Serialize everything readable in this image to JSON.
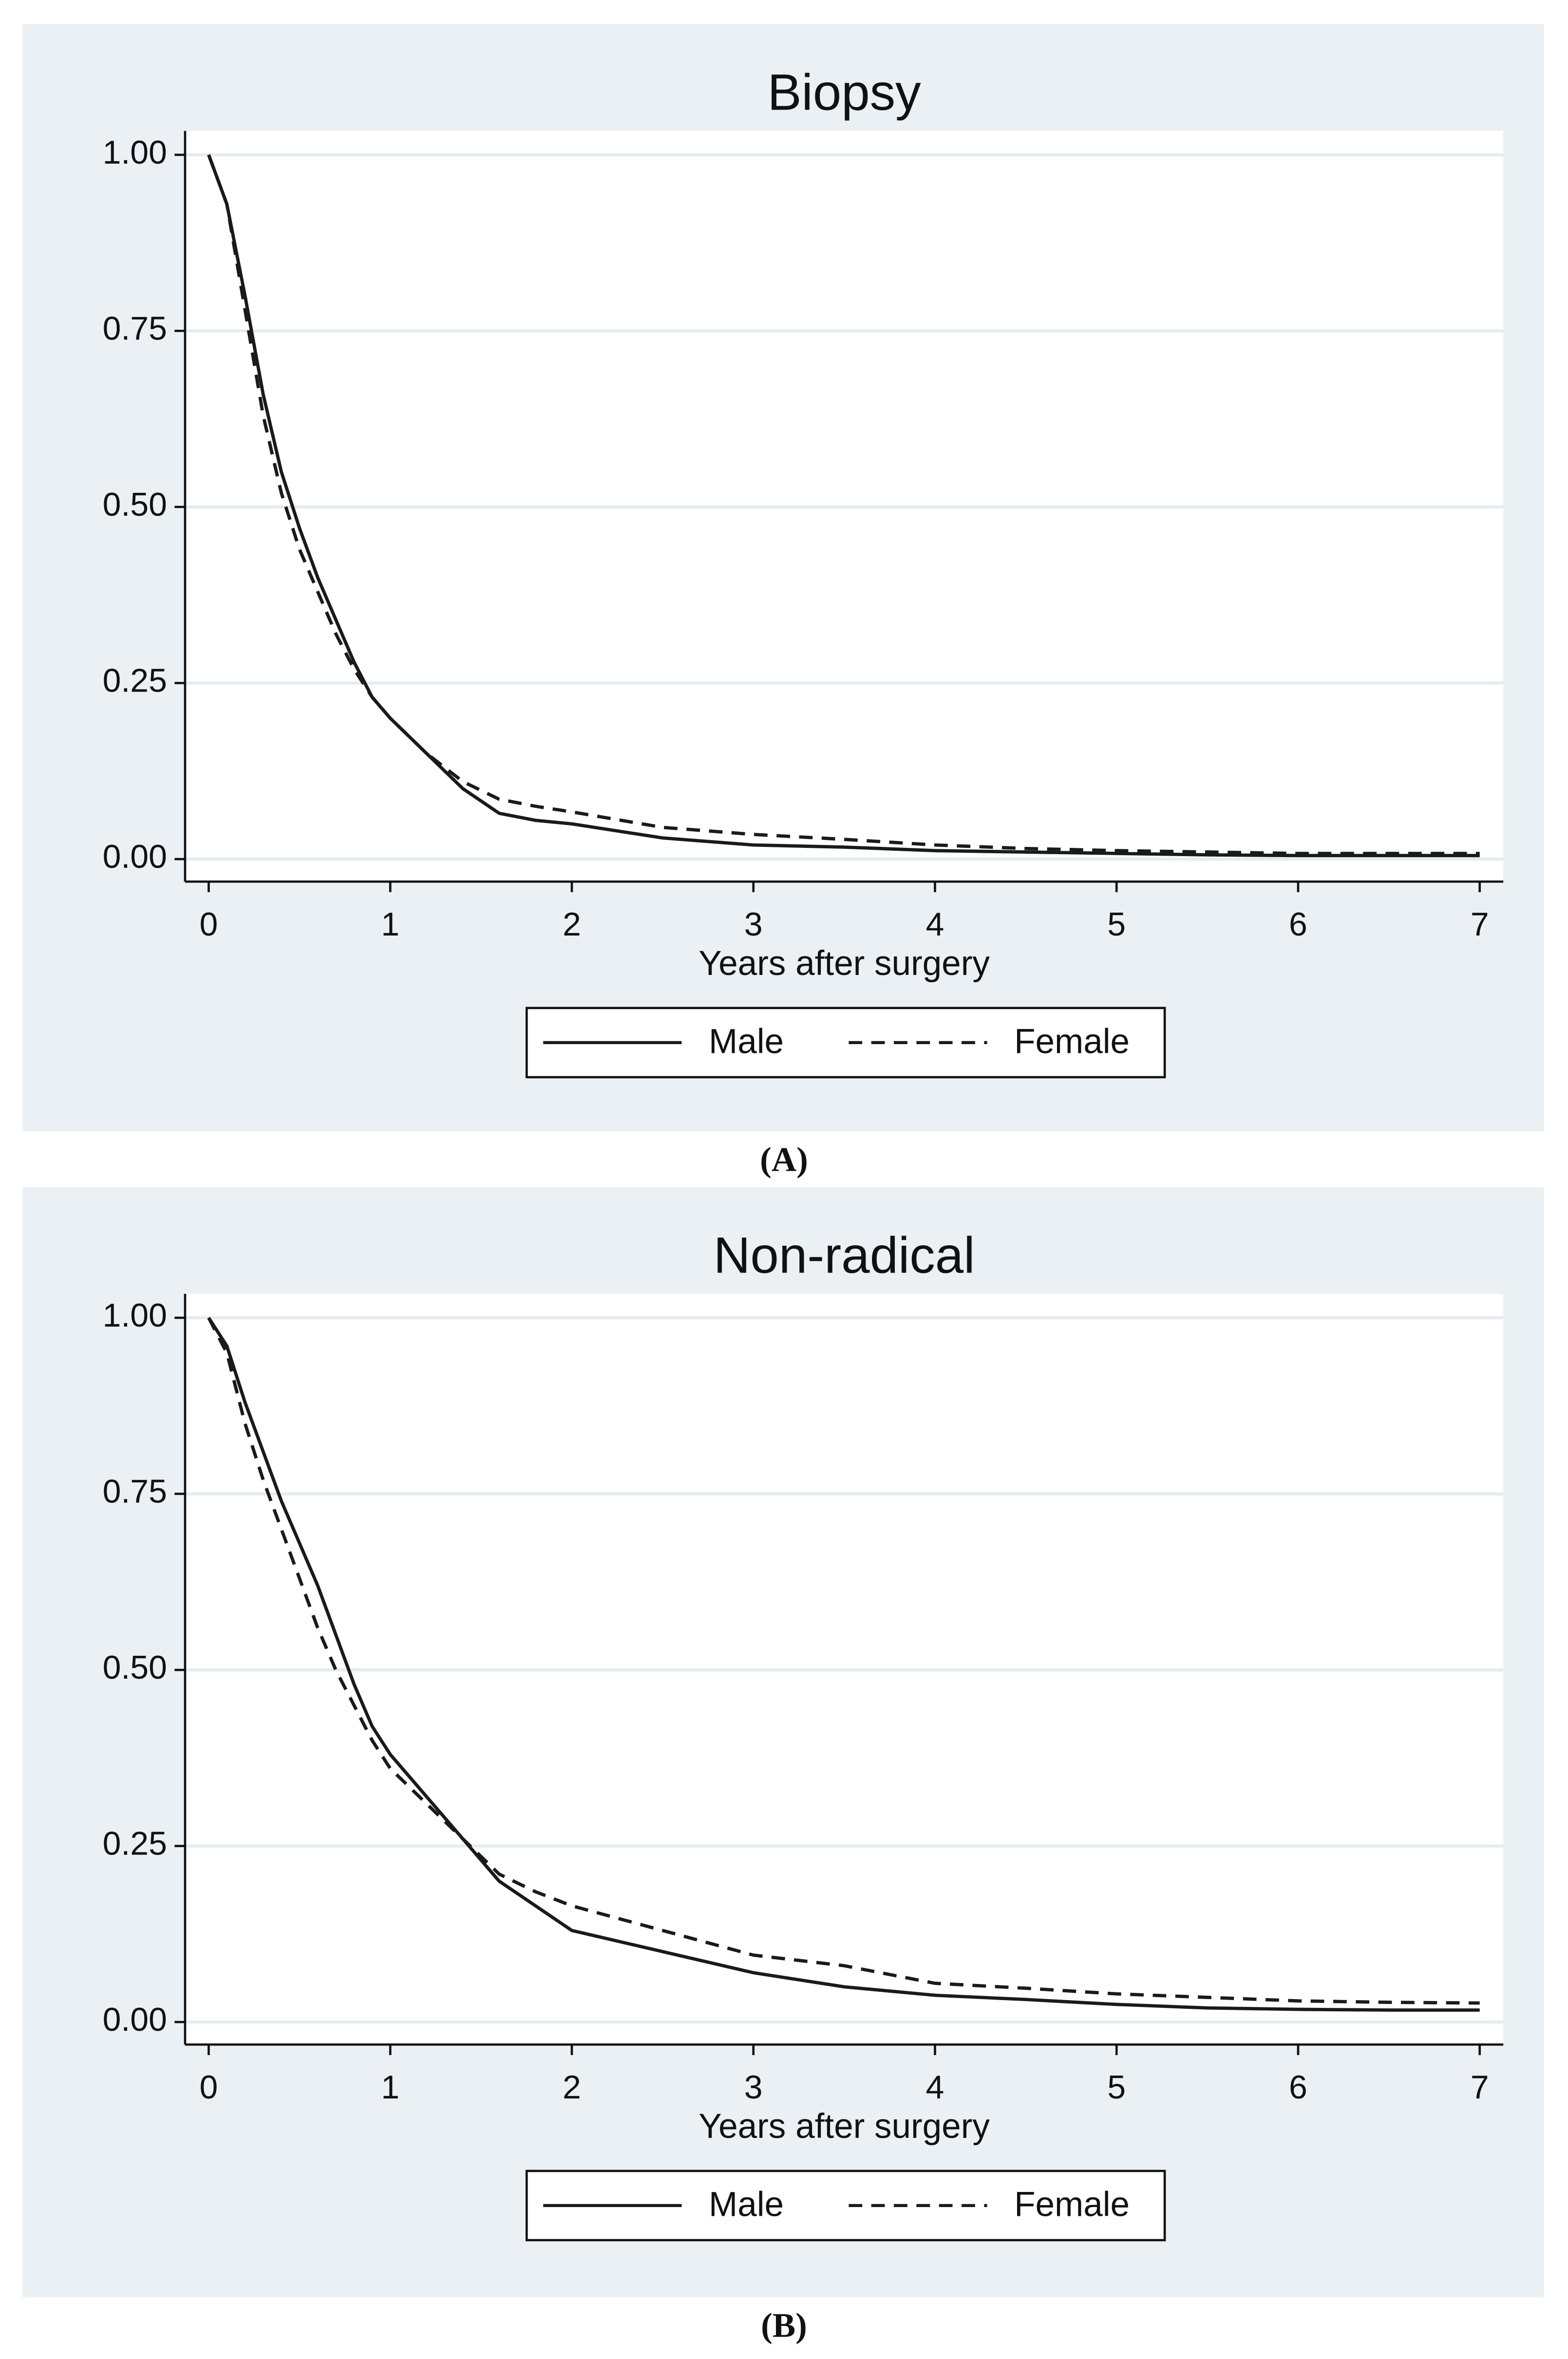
{
  "chart_data": [
    {
      "type": "line",
      "title": "Biopsy",
      "xlabel": "Years after surgery",
      "caption": "(A)",
      "x": [
        0,
        0.1,
        0.2,
        0.3,
        0.4,
        0.5,
        0.6,
        0.7,
        0.8,
        0.9,
        1,
        1.2,
        1.4,
        1.6,
        1.8,
        2,
        2.5,
        3,
        3.5,
        4,
        4.5,
        5,
        5.5,
        6,
        6.5,
        7
      ],
      "series": [
        {
          "name": "Male",
          "color": "#1a1a1a",
          "linestyle": "solid",
          "values": [
            1,
            0.93,
            0.8,
            0.66,
            0.55,
            0.47,
            0.4,
            0.34,
            0.28,
            0.23,
            0.2,
            0.15,
            0.1,
            0.065,
            0.055,
            0.05,
            0.03,
            0.02,
            0.017,
            0.012,
            0.01,
            0.008,
            0.006,
            0.005,
            0.005,
            0.005
          ]
        },
        {
          "name": "Female",
          "color": "#1a1a1a",
          "linestyle": "dashed",
          "values": [
            1,
            0.93,
            0.78,
            0.63,
            0.52,
            0.44,
            0.38,
            0.32,
            0.27,
            0.23,
            0.2,
            0.15,
            0.11,
            0.085,
            0.075,
            0.067,
            0.045,
            0.035,
            0.028,
            0.02,
            0.015,
            0.012,
            0.01,
            0.008,
            0.008,
            0.008
          ]
        }
      ],
      "xlim": [
        -0.13,
        7.13
      ],
      "ylim": [
        -0.032,
        1.034
      ],
      "xticks": [
        0,
        1,
        2,
        3,
        4,
        5,
        6,
        7
      ],
      "yticks": [
        {
          "value": 0,
          "label": "0.00"
        },
        {
          "value": 0.25,
          "label": "0.25"
        },
        {
          "value": 0.5,
          "label": "0.50"
        },
        {
          "value": 0.75,
          "label": "0.75"
        },
        {
          "value": 1,
          "label": "1.00"
        }
      ],
      "grid": true,
      "legend": "bottom"
    },
    {
      "type": "line",
      "title": "Non-radical",
      "xlabel": "Years after surgery",
      "caption": "(B)",
      "x": [
        0,
        0.1,
        0.2,
        0.3,
        0.4,
        0.5,
        0.6,
        0.7,
        0.8,
        0.9,
        1,
        1.2,
        1.4,
        1.6,
        1.8,
        2,
        2.5,
        3,
        3.5,
        4,
        4.5,
        5,
        5.5,
        6,
        6.5,
        7
      ],
      "series": [
        {
          "name": "Male",
          "color": "#1a1a1a",
          "linestyle": "solid",
          "values": [
            1,
            0.96,
            0.88,
            0.81,
            0.74,
            0.68,
            0.62,
            0.55,
            0.48,
            0.42,
            0.38,
            0.32,
            0.26,
            0.2,
            0.165,
            0.13,
            0.1,
            0.07,
            0.05,
            0.038,
            0.032,
            0.025,
            0.02,
            0.018,
            0.017,
            0.017
          ]
        },
        {
          "name": "Female",
          "color": "#1a1a1a",
          "linestyle": "dashed",
          "values": [
            1,
            0.95,
            0.85,
            0.77,
            0.7,
            0.63,
            0.56,
            0.5,
            0.45,
            0.4,
            0.36,
            0.31,
            0.26,
            0.21,
            0.185,
            0.165,
            0.13,
            0.095,
            0.08,
            0.055,
            0.048,
            0.04,
            0.035,
            0.03,
            0.028,
            0.027
          ]
        }
      ],
      "xlim": [
        -0.13,
        7.13
      ],
      "ylim": [
        -0.032,
        1.034
      ],
      "xticks": [
        0,
        1,
        2,
        3,
        4,
        5,
        6,
        7
      ],
      "yticks": [
        {
          "value": 0,
          "label": "0.00"
        },
        {
          "value": 0.25,
          "label": "0.25"
        },
        {
          "value": 0.5,
          "label": "0.50"
        },
        {
          "value": 0.75,
          "label": "0.75"
        },
        {
          "value": 1,
          "label": "1.00"
        }
      ],
      "grid": true,
      "legend": "bottom"
    }
  ]
}
